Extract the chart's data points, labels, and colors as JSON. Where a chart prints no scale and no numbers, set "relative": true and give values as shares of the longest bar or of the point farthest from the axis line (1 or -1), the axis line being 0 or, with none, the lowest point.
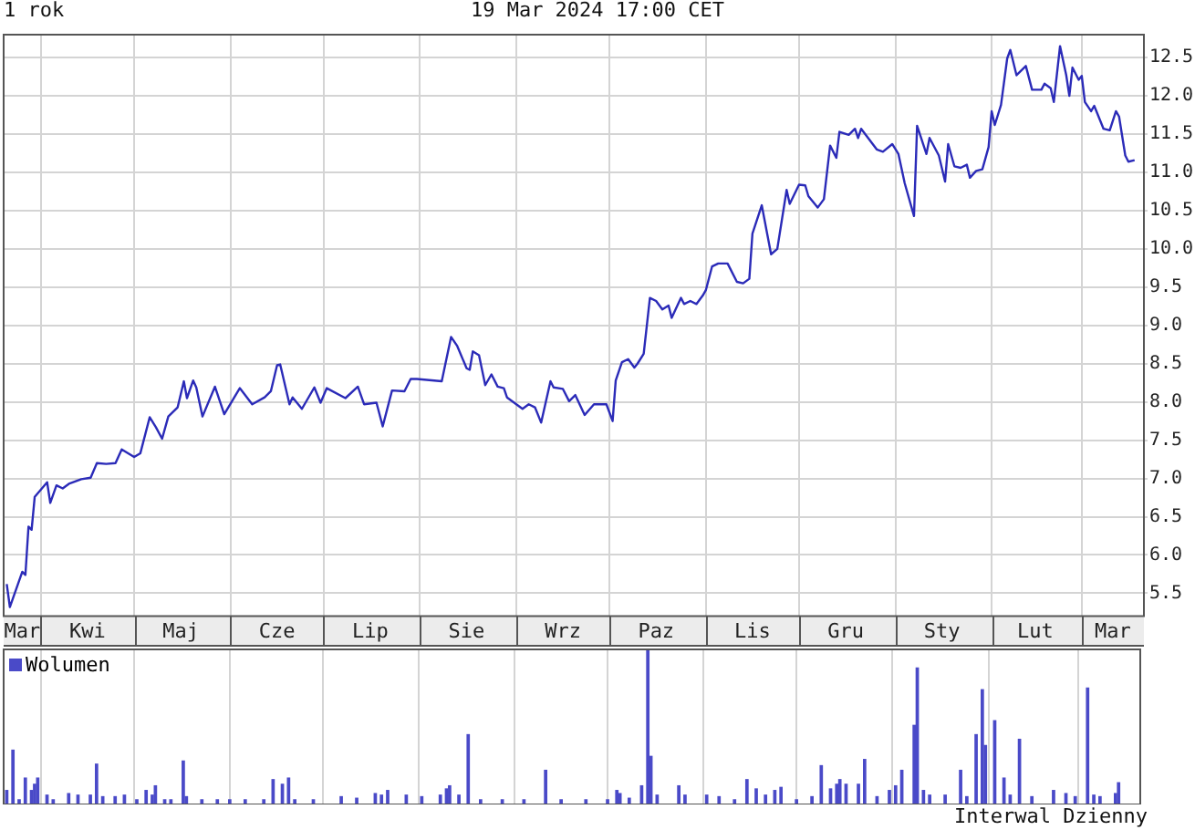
{
  "chart_data": [
    {
      "type": "line",
      "title": "1 rok",
      "subtitle": "19 Mar 2024 17:00 CET",
      "grid": true,
      "marker": "none",
      "line_style": "solid",
      "xlim": [
        "2023-03-20",
        "2024-03-21"
      ],
      "xticks": [
        {
          "value": "2023-03-26",
          "label": "Mar"
        },
        {
          "value": "2023-04-01",
          "label": null
        },
        {
          "value": "2023-04-16",
          "label": "Kwi"
        },
        {
          "value": "2023-05-01",
          "label": null
        },
        {
          "value": "2023-05-16",
          "label": "Maj"
        },
        {
          "value": "2023-06-01",
          "label": null
        },
        {
          "value": "2023-06-16",
          "label": "Cze"
        },
        {
          "value": "2023-07-01",
          "label": null
        },
        {
          "value": "2023-07-16",
          "label": "Lip"
        },
        {
          "value": "2023-08-01",
          "label": null
        },
        {
          "value": "2023-08-16",
          "label": "Sie"
        },
        {
          "value": "2023-09-01",
          "label": null
        },
        {
          "value": "2023-09-16",
          "label": "Wrz"
        },
        {
          "value": "2023-10-01",
          "label": null
        },
        {
          "value": "2023-10-16",
          "label": "Paz"
        },
        {
          "value": "2023-11-01",
          "label": null
        },
        {
          "value": "2023-11-16",
          "label": "Lis"
        },
        {
          "value": "2023-12-01",
          "label": null
        },
        {
          "value": "2023-12-16",
          "label": "Gru"
        },
        {
          "value": "2024-01-01",
          "label": null
        },
        {
          "value": "2024-01-16",
          "label": "Sty"
        },
        {
          "value": "2024-02-01",
          "label": null
        },
        {
          "value": "2024-02-15",
          "label": "Lut"
        },
        {
          "value": "2024-03-01",
          "label": null
        },
        {
          "value": "2024-03-11",
          "label": "Mar"
        }
      ],
      "ylim": [
        5.2,
        12.8
      ],
      "yticks": [
        5.5,
        {
          "value": 6,
          "label": "6.0"
        },
        6.5,
        {
          "value": 7,
          "label": "7.0"
        },
        7.5,
        {
          "value": 8,
          "label": "8.0"
        },
        8.5,
        {
          "value": 9,
          "label": "9.0"
        },
        9.5,
        {
          "value": 10,
          "label": "10.0"
        },
        10.5,
        {
          "value": 11,
          "label": "11.0"
        },
        11.5,
        {
          "value": 12,
          "label": "12.0"
        },
        12.5
      ],
      "series": [
        {
          "color": "#2b2bb8",
          "x": [
            "2023-03-21",
            "2023-03-22",
            "2023-03-26",
            "2023-03-27",
            "2023-03-28",
            "2023-03-29",
            "2023-03-30",
            "2023-04-03",
            "2023-04-04",
            "2023-04-06",
            "2023-04-08",
            "2023-04-10",
            "2023-04-14",
            "2023-04-17",
            "2023-04-19",
            "2023-04-22",
            "2023-04-25",
            "2023-04-27",
            "2023-05-01",
            "2023-05-03",
            "2023-05-06",
            "2023-05-08",
            "2023-05-10",
            "2023-05-12",
            "2023-05-15",
            "2023-05-17",
            "2023-05-18",
            "2023-05-20",
            "2023-05-21",
            "2023-05-23",
            "2023-05-27",
            "2023-05-30",
            "2023-06-04",
            "2023-06-08",
            "2023-06-12",
            "2023-06-14",
            "2023-06-16",
            "2023-06-17",
            "2023-06-20",
            "2023-06-21",
            "2023-06-24",
            "2023-06-28",
            "2023-06-30",
            "2023-07-02",
            "2023-07-08",
            "2023-07-12",
            "2023-07-14",
            "2023-07-18",
            "2023-07-20",
            "2023-07-23",
            "2023-07-27",
            "2023-07-29",
            "2023-07-31",
            "2023-08-08",
            "2023-08-11",
            "2023-08-13",
            "2023-08-16",
            "2023-08-17",
            "2023-08-18",
            "2023-08-20",
            "2023-08-22",
            "2023-08-24",
            "2023-08-26",
            "2023-08-28",
            "2023-08-29",
            "2023-09-03",
            "2023-09-05",
            "2023-09-07",
            "2023-09-09",
            "2023-09-12",
            "2023-09-13",
            "2023-09-16",
            "2023-09-18",
            "2023-09-20",
            "2023-09-23",
            "2023-09-26",
            "2023-09-30",
            "2023-10-02",
            "2023-10-03",
            "2023-10-05",
            "2023-10-07",
            "2023-10-09",
            "2023-10-10",
            "2023-10-12",
            "2023-10-14",
            "2023-10-16",
            "2023-10-18",
            "2023-10-20",
            "2023-10-21",
            "2023-10-24",
            "2023-10-25",
            "2023-10-27",
            "2023-10-29",
            "2023-10-31",
            "2023-11-01",
            "2023-11-03",
            "2023-11-05",
            "2023-11-08",
            "2023-11-11",
            "2023-11-13",
            "2023-11-15",
            "2023-11-16",
            "2023-11-19",
            "2023-11-22",
            "2023-11-24",
            "2023-11-27",
            "2023-11-28",
            "2023-12-01",
            "2023-12-03",
            "2023-12-04",
            "2023-12-07",
            "2023-12-09",
            "2023-12-11",
            "2023-12-13",
            "2023-12-14",
            "2023-12-17",
            "2023-12-19",
            "2023-12-20",
            "2023-12-21",
            "2023-12-26",
            "2023-12-28",
            "2023-12-31",
            "2024-01-02",
            "2024-01-04",
            "2024-01-07",
            "2024-01-08",
            "2024-01-11",
            "2024-01-12",
            "2024-01-15",
            "2024-01-17",
            "2024-01-18",
            "2024-01-20",
            "2024-01-22",
            "2024-01-24",
            "2024-01-25",
            "2024-01-27",
            "2024-01-29",
            "2024-01-31",
            "2024-02-01",
            "2024-02-02",
            "2024-02-04",
            "2024-02-06",
            "2024-02-07",
            "2024-02-09",
            "2024-02-12",
            "2024-02-14",
            "2024-02-17",
            "2024-02-18",
            "2024-02-20",
            "2024-02-21",
            "2024-02-23",
            "2024-02-25",
            "2024-02-26",
            "2024-02-27",
            "2024-02-29",
            "2024-03-01",
            "2024-03-02",
            "2024-03-04",
            "2024-03-05",
            "2024-03-08",
            "2024-03-10",
            "2024-03-12",
            "2024-03-13",
            "2024-03-15",
            "2024-03-16",
            "2024-03-18"
          ],
          "values": [
            5.62,
            5.32,
            5.78,
            5.74,
            6.37,
            6.33,
            6.76,
            6.95,
            6.68,
            6.91,
            6.87,
            6.93,
            6.99,
            7.01,
            7.2,
            7.19,
            7.2,
            7.38,
            7.28,
            7.33,
            7.8,
            7.67,
            7.52,
            7.81,
            7.93,
            8.27,
            8.05,
            8.28,
            8.19,
            7.81,
            8.2,
            7.84,
            8.18,
            7.97,
            8.06,
            8.14,
            8.48,
            8.49,
            7.97,
            8.06,
            7.91,
            8.19,
            7.99,
            8.18,
            8.05,
            8.2,
            7.97,
            7.99,
            7.68,
            8.15,
            8.14,
            8.3,
            8.3,
            8.27,
            8.85,
            8.73,
            8.44,
            8.42,
            8.66,
            8.61,
            8.22,
            8.36,
            8.2,
            8.18,
            8.06,
            7.91,
            7.97,
            7.93,
            7.73,
            8.27,
            8.19,
            8.17,
            8.01,
            8.09,
            7.83,
            7.97,
            7.97,
            7.75,
            8.28,
            8.52,
            8.56,
            8.45,
            8.5,
            8.63,
            9.36,
            9.32,
            9.21,
            9.26,
            9.1,
            9.36,
            9.28,
            9.32,
            9.28,
            9.39,
            9.46,
            9.77,
            9.81,
            9.81,
            9.57,
            9.55,
            9.61,
            10.2,
            10.57,
            9.93,
            10.0,
            10.77,
            10.59,
            10.84,
            10.83,
            10.69,
            10.54,
            10.65,
            11.35,
            11.19,
            11.53,
            11.49,
            11.57,
            11.45,
            11.57,
            11.3,
            11.27,
            11.37,
            11.24,
            10.86,
            10.43,
            11.61,
            11.24,
            11.45,
            11.22,
            10.88,
            11.37,
            11.08,
            11.06,
            11.1,
            10.93,
            11.02,
            11.04,
            11.33,
            11.8,
            11.62,
            11.88,
            12.49,
            12.6,
            12.27,
            12.39,
            12.08,
            12.08,
            12.16,
            12.1,
            11.92,
            12.65,
            12.27,
            12.0,
            12.37,
            12.21,
            12.26,
            11.92,
            11.8,
            11.87,
            11.57,
            11.55,
            11.8,
            11.73,
            11.22,
            11.14,
            11.16
          ]
        }
      ]
    },
    {
      "type": "bar",
      "relative": true,
      "grid": true,
      "legend": "top left",
      "tick_labels": false,
      "annotations": [
        "Interwal Dzienny"
      ],
      "xlim": [
        "2023-03-20",
        "2024-03-21"
      ],
      "xticks": [
        {
          "value": "2023-04-01",
          "label": null
        },
        {
          "value": "2023-05-01",
          "label": null
        },
        {
          "value": "2023-06-01",
          "label": null
        },
        {
          "value": "2023-07-01",
          "label": null
        },
        {
          "value": "2023-08-01",
          "label": null
        },
        {
          "value": "2023-09-01",
          "label": null
        },
        {
          "value": "2023-10-01",
          "label": null
        },
        {
          "value": "2023-11-01",
          "label": null
        },
        {
          "value": "2023-12-01",
          "label": null
        },
        {
          "value": "2024-01-01",
          "label": null
        },
        {
          "value": "2024-02-01",
          "label": null
        },
        {
          "value": "2024-03-01",
          "label": null
        }
      ],
      "series": [
        {
          "name": "Wolumen",
          "color": "#4a4ac8",
          "x": [
            "2023-03-21",
            "2023-03-23",
            "2023-03-25",
            "2023-03-27",
            "2023-03-29",
            "2023-03-30",
            "2023-03-31",
            "2023-04-03",
            "2023-04-05",
            "2023-04-10",
            "2023-04-13",
            "2023-04-17",
            "2023-04-19",
            "2023-04-21",
            "2023-04-25",
            "2023-04-28",
            "2023-05-02",
            "2023-05-05",
            "2023-05-07",
            "2023-05-08",
            "2023-05-11",
            "2023-05-13",
            "2023-05-17",
            "2023-05-18",
            "2023-05-23",
            "2023-05-28",
            "2023-06-01",
            "2023-06-06",
            "2023-06-12",
            "2023-06-15",
            "2023-06-18",
            "2023-06-20",
            "2023-06-22",
            "2023-06-28",
            "2023-07-07",
            "2023-07-12",
            "2023-07-18",
            "2023-07-20",
            "2023-07-22",
            "2023-07-28",
            "2023-08-02",
            "2023-08-08",
            "2023-08-10",
            "2023-08-11",
            "2023-08-14",
            "2023-08-17",
            "2023-08-21",
            "2023-08-28",
            "2023-09-04",
            "2023-09-11",
            "2023-09-16",
            "2023-09-24",
            "2023-10-01",
            "2023-10-04",
            "2023-10-05",
            "2023-10-08",
            "2023-10-12",
            "2023-10-14",
            "2023-10-15",
            "2023-10-17",
            "2023-10-24",
            "2023-10-26",
            "2023-11-02",
            "2023-11-06",
            "2023-11-11",
            "2023-11-15",
            "2023-11-18",
            "2023-11-21",
            "2023-11-24",
            "2023-11-26",
            "2023-12-01",
            "2023-12-06",
            "2023-12-09",
            "2023-12-12",
            "2023-12-14",
            "2023-12-15",
            "2023-12-17",
            "2023-12-21",
            "2023-12-23",
            "2023-12-27",
            "2023-12-31",
            "2024-01-02",
            "2024-01-04",
            "2024-01-08",
            "2024-01-09",
            "2024-01-11",
            "2024-01-13",
            "2024-01-18",
            "2024-01-23",
            "2024-01-25",
            "2024-01-28",
            "2024-01-30",
            "2024-01-31",
            "2024-02-03",
            "2024-02-06",
            "2024-02-08",
            "2024-02-11",
            "2024-02-15",
            "2024-02-22",
            "2024-02-26",
            "2024-02-29",
            "2024-03-04",
            "2024-03-06",
            "2024-03-08",
            "2024-03-13",
            "2024-03-14"
          ],
          "values": [
            0.09,
            0.35,
            0.03,
            0.17,
            0.09,
            0.13,
            0.17,
            0.06,
            0.03,
            0.07,
            0.06,
            0.06,
            0.26,
            0.05,
            0.05,
            0.06,
            0.03,
            0.09,
            0.06,
            0.12,
            0.03,
            0.03,
            0.28,
            0.05,
            0.03,
            0.03,
            0.03,
            0.03,
            0.03,
            0.16,
            0.13,
            0.17,
            0.03,
            0.03,
            0.05,
            0.04,
            0.07,
            0.06,
            0.09,
            0.06,
            0.05,
            0.06,
            0.1,
            0.12,
            0.06,
            0.45,
            0.03,
            0.03,
            0.03,
            0.22,
            0.03,
            0.03,
            0.03,
            0.09,
            0.07,
            0.04,
            0.12,
            1,
            0.31,
            0.06,
            0.12,
            0.06,
            0.06,
            0.05,
            0.03,
            0.16,
            0.1,
            0.06,
            0.09,
            0.11,
            0.03,
            0.05,
            0.25,
            0.1,
            0.13,
            0.16,
            0.13,
            0.13,
            0.29,
            0.05,
            0.09,
            0.12,
            0.22,
            0.51,
            0.88,
            0.09,
            0.06,
            0.06,
            0.22,
            0.05,
            0.45,
            0.74,
            0.38,
            0.54,
            0.17,
            0.06,
            0.42,
            0.05,
            0.09,
            0.07,
            0.05,
            0.75,
            0.06,
            0.05,
            0.07,
            0.14
          ]
        }
      ]
    }
  ]
}
